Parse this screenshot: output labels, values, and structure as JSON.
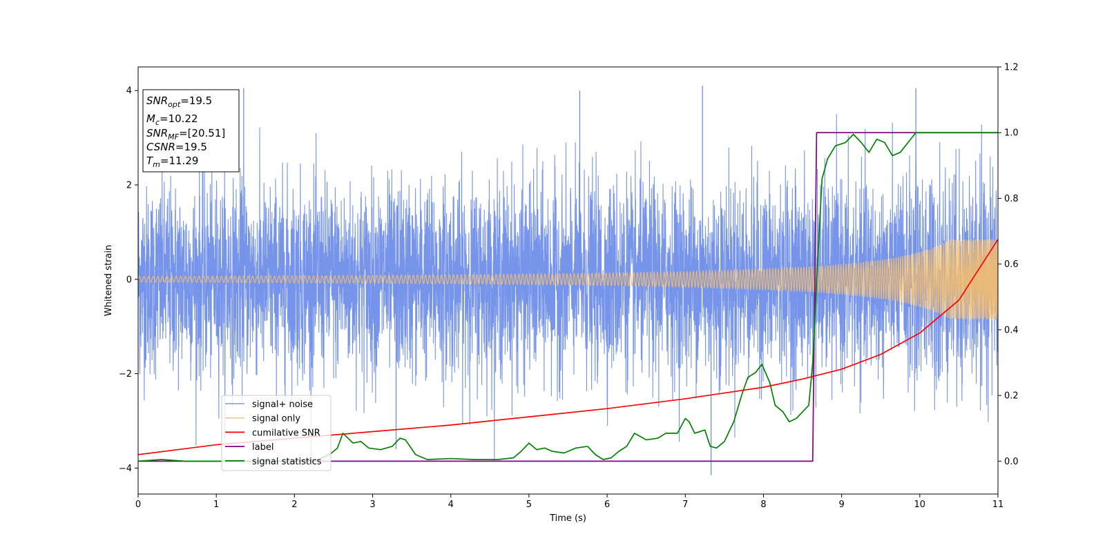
{
  "chart_data": {
    "type": "line",
    "xlabel": "Time (s)",
    "ylabel_left": "Whitened strain",
    "ylabel_right": "",
    "xlim": [
      0,
      11
    ],
    "ylim_left": [
      -4.55,
      4.5
    ],
    "ylim_right": [
      -0.1,
      1.2
    ],
    "x_ticks": [
      0,
      1,
      2,
      3,
      4,
      5,
      6,
      7,
      8,
      9,
      10,
      11
    ],
    "y_left_ticks": [
      -4,
      -2,
      0,
      2,
      4
    ],
    "y_right_ticks": [
      0.0,
      0.2,
      0.4,
      0.6,
      0.8,
      1.0,
      1.2
    ],
    "y_right_tick_labels": [
      "0.0",
      "0.2",
      "0.4",
      "0.6",
      "0.8",
      "1.0",
      "1.2"
    ],
    "grid": false,
    "legend_position": "lower-left",
    "info_box": {
      "lines": [
        {
          "base": "SNR",
          "sub": "opt",
          "value": "=19.5"
        },
        {
          "base": "M",
          "sub": "c",
          "value": "=10.22"
        },
        {
          "base": "SNR",
          "sub": "MF",
          "value": "=[20.51]"
        },
        {
          "base": "CSNR",
          "sub": "",
          "value": "=19.5"
        },
        {
          "base": "T",
          "sub": "m",
          "value": "=11.29"
        }
      ]
    },
    "series": [
      {
        "name": "signal+ noise",
        "axis": "left",
        "color": "#6f8ee8",
        "kind": "noise-band",
        "noise_sigma": 1.0,
        "extreme_peaks": [
          {
            "x": 1.35,
            "y": 4.05
          },
          {
            "x": 7.22,
            "y": 4.1
          },
          {
            "x": 7.33,
            "y": -4.15
          },
          {
            "x": 9.95,
            "y": 4.05
          },
          {
            "x": 5.65,
            "y": 4.0
          },
          {
            "x": 3.3,
            "y": -3.6
          }
        ]
      },
      {
        "name": "signal only",
        "axis": "left",
        "color": "#f5be6e",
        "kind": "chirp",
        "amplitude_start": 0.06,
        "amplitude_end": 0.85,
        "merger_time": 11.29
      },
      {
        "name": "cumilative SNR",
        "axis": "right",
        "color": "#ff0000",
        "x": [
          0,
          1,
          2,
          3,
          4,
          5,
          6,
          7,
          8,
          8.5,
          9,
          9.5,
          10,
          10.5,
          11
        ],
        "y": [
          0.02,
          0.05,
          0.07,
          0.09,
          0.11,
          0.135,
          0.16,
          0.19,
          0.225,
          0.25,
          0.28,
          0.325,
          0.39,
          0.49,
          0.675
        ]
      },
      {
        "name": "label",
        "axis": "right",
        "color": "#800080",
        "x": [
          0,
          8.63,
          8.68,
          11
        ],
        "y": [
          0.0,
          0.0,
          1.0,
          1.0
        ]
      },
      {
        "name": "signal statistics",
        "axis": "right",
        "color": "#008000",
        "x": [
          0,
          0.3,
          0.6,
          1.0,
          1.5,
          2.0,
          2.3,
          2.45,
          2.55,
          2.62,
          2.75,
          2.85,
          2.95,
          3.1,
          3.25,
          3.35,
          3.42,
          3.55,
          3.7,
          4.0,
          4.3,
          4.6,
          4.8,
          4.9,
          5.0,
          5.1,
          5.2,
          5.3,
          5.45,
          5.6,
          5.75,
          5.85,
          5.95,
          6.05,
          6.15,
          6.25,
          6.35,
          6.5,
          6.65,
          6.75,
          6.9,
          7.0,
          7.05,
          7.12,
          7.25,
          7.32,
          7.4,
          7.5,
          7.62,
          7.72,
          7.8,
          7.9,
          7.98,
          8.08,
          8.15,
          8.25,
          8.33,
          8.42,
          8.5,
          8.58,
          8.63,
          8.68,
          8.75,
          8.82,
          8.92,
          9.05,
          9.15,
          9.25,
          9.35,
          9.45,
          9.55,
          9.65,
          9.75,
          9.85,
          9.95,
          10.1,
          10.3,
          10.5,
          10.7,
          10.9,
          11.0
        ],
        "y": [
          0.0,
          0.005,
          0.0,
          0.0,
          0.0,
          0.0,
          0.005,
          0.02,
          0.04,
          0.085,
          0.055,
          0.06,
          0.04,
          0.035,
          0.045,
          0.07,
          0.065,
          0.02,
          0.005,
          0.008,
          0.005,
          0.005,
          0.01,
          0.03,
          0.055,
          0.035,
          0.04,
          0.03,
          0.025,
          0.04,
          0.045,
          0.02,
          0.005,
          0.01,
          0.03,
          0.045,
          0.085,
          0.065,
          0.07,
          0.085,
          0.085,
          0.13,
          0.12,
          0.085,
          0.095,
          0.045,
          0.04,
          0.06,
          0.12,
          0.2,
          0.255,
          0.27,
          0.295,
          0.24,
          0.17,
          0.15,
          0.12,
          0.13,
          0.15,
          0.17,
          0.3,
          0.55,
          0.86,
          0.92,
          0.96,
          0.97,
          0.995,
          0.97,
          0.94,
          0.98,
          0.97,
          0.93,
          0.94,
          0.97,
          1.0,
          1.0,
          1.0,
          1.0,
          1.0,
          1.0,
          1.0
        ]
      }
    ]
  }
}
